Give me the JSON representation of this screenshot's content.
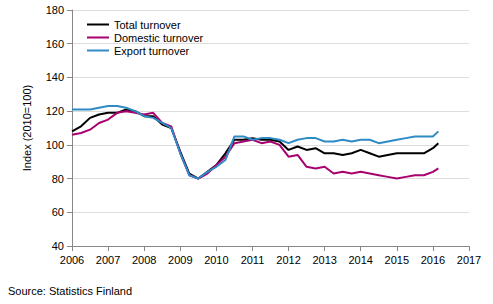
{
  "chart_data": {
    "type": "line",
    "y_label": "Index (2010=100)",
    "source": "Source: Statistics Finland",
    "x": [
      2006,
      2006.25,
      2006.5,
      2006.75,
      2007,
      2007.25,
      2007.5,
      2007.75,
      2008,
      2008.25,
      2008.5,
      2008.75,
      2009,
      2009.25,
      2009.5,
      2009.75,
      2010,
      2010.25,
      2010.5,
      2010.75,
      2011,
      2011.25,
      2011.5,
      2011.75,
      2012,
      2012.25,
      2012.5,
      2012.75,
      2013,
      2013.25,
      2013.5,
      2013.75,
      2014,
      2014.25,
      2014.5,
      2014.75,
      2015,
      2015.25,
      2015.5,
      2015.75,
      2016,
      2016.15
    ],
    "series": [
      {
        "name": "Total turnover",
        "color": "#000000",
        "values": [
          108,
          111,
          116,
          118,
          119,
          119,
          121,
          120,
          117,
          117,
          112,
          110,
          96,
          83,
          80,
          84,
          88,
          95,
          103,
          103,
          104,
          103,
          103,
          102,
          97,
          99,
          97,
          98,
          95,
          95,
          94,
          95,
          97,
          95,
          93,
          94,
          95,
          95,
          95,
          95,
          98,
          101
        ]
      },
      {
        "name": "Domestic turnover",
        "color": "#a8006e",
        "values": [
          106,
          107,
          109,
          113,
          115,
          119,
          120,
          119,
          118,
          119,
          113,
          111,
          95,
          82,
          80,
          83,
          88,
          93,
          101,
          102,
          103,
          101,
          102,
          100,
          93,
          94,
          87,
          86,
          87,
          83,
          84,
          83,
          84,
          83,
          82,
          81,
          80,
          81,
          82,
          82,
          84,
          86
        ]
      },
      {
        "name": "Export turnover",
        "color": "#2f8bc6",
        "values": [
          121,
          121,
          121,
          122,
          123,
          123,
          122,
          120,
          117,
          116,
          113,
          110,
          95,
          82,
          80,
          84,
          87,
          91,
          105,
          105,
          103,
          104,
          104,
          103,
          101,
          103,
          104,
          104,
          102,
          102,
          103,
          102,
          103,
          103,
          101,
          102,
          103,
          104,
          105,
          105,
          105,
          108
        ]
      }
    ],
    "xlim": [
      2006,
      2017
    ],
    "xticks": [
      2006,
      2007,
      2008,
      2009,
      2010,
      2011,
      2012,
      2013,
      2014,
      2015,
      2016,
      2017
    ],
    "ylim": [
      40,
      180
    ],
    "yticks": [
      40,
      60,
      80,
      100,
      120,
      140,
      160,
      180
    ],
    "grid": true,
    "legend": "top-left"
  }
}
